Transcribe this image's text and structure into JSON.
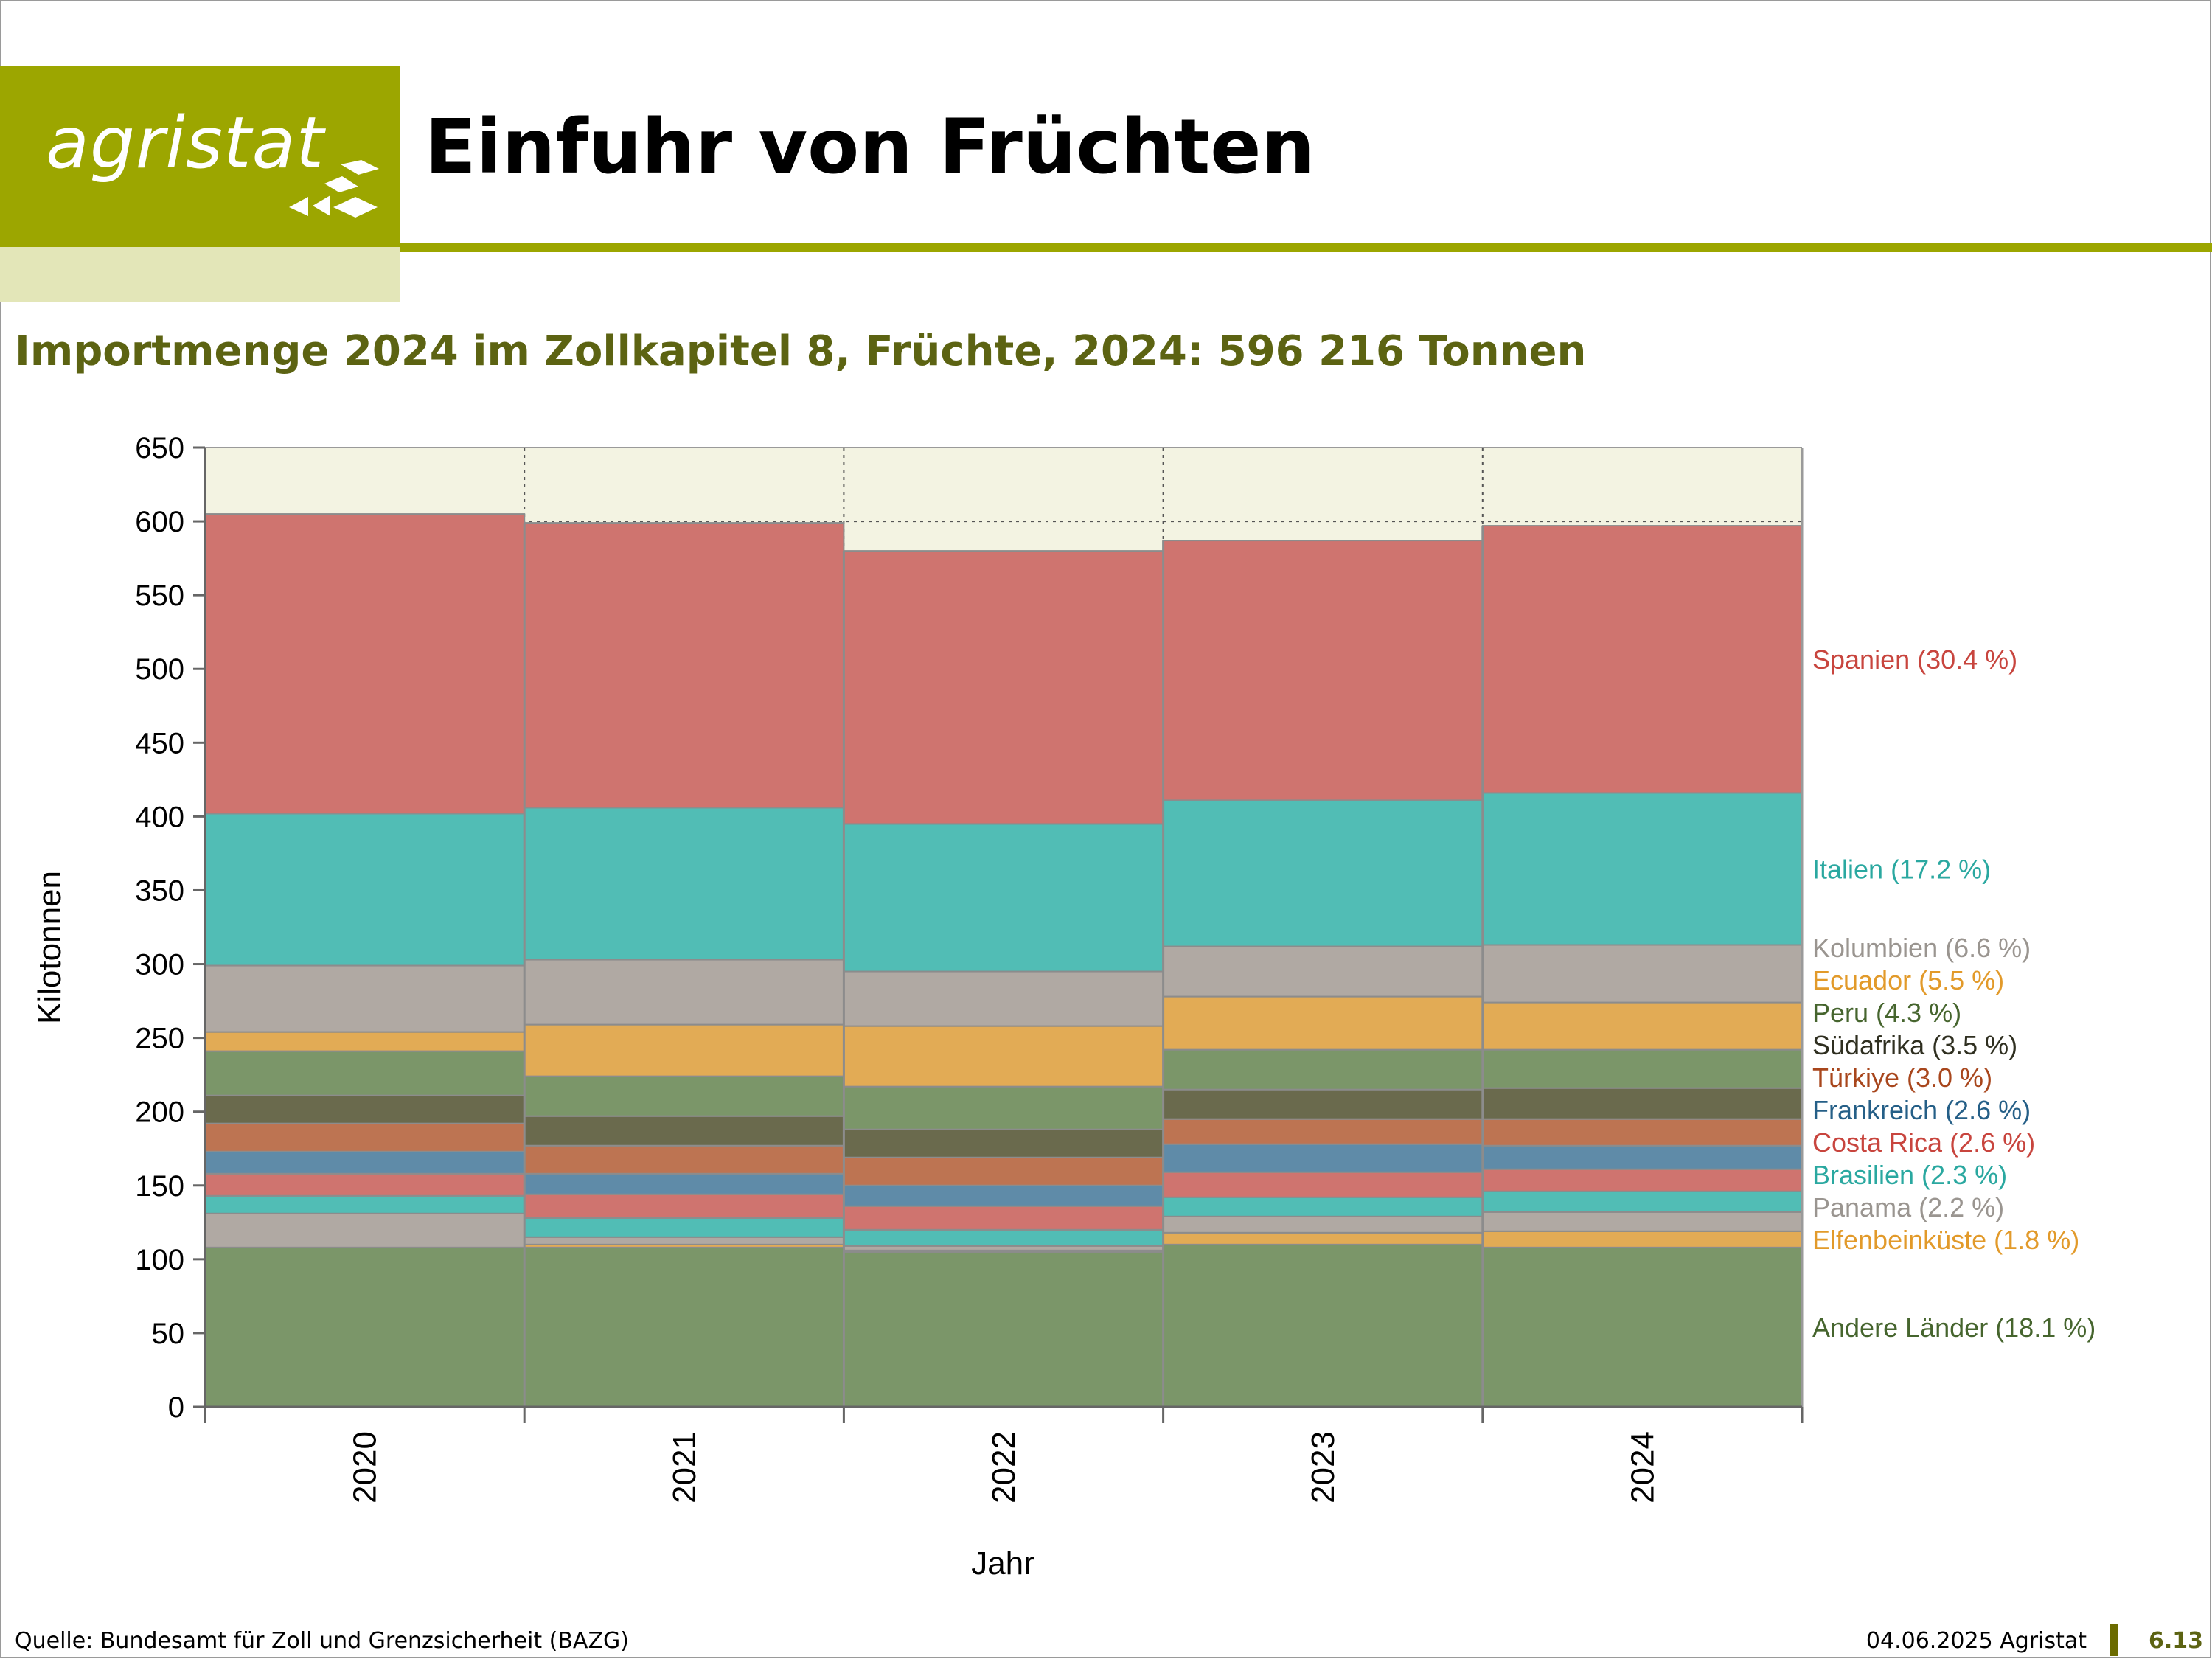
{
  "header": {
    "logo_text": "agristat",
    "title": "Einfuhr von Früchten"
  },
  "subtitle": "Importmenge 2024 im Zollkapitel 8, Früchte, 2024: 596 216 Tonnen",
  "chart_data": {
    "type": "bar",
    "stacked": true,
    "categories": [
      "2020",
      "2021",
      "2022",
      "2023",
      "2024"
    ],
    "xlabel": "Jahr",
    "ylabel": "Kilotonnen",
    "ylim": [
      0,
      650
    ],
    "yticks": [
      0,
      50,
      100,
      150,
      200,
      250,
      300,
      350,
      400,
      450,
      500,
      550,
      600,
      650
    ],
    "grid": true,
    "legend_position": "right",
    "plot_background": "#f3f3e2",
    "series": [
      {
        "name": "Andere Länder (18.1 %)",
        "color": "#7b9669",
        "label_color": "#46652e",
        "values": [
          108,
          108,
          105,
          110,
          108
        ]
      },
      {
        "name": "Elfenbeinküste (1.8 %)",
        "color": "#e2ab55",
        "label_color": "#e29a2a",
        "values": [
          0,
          2,
          1,
          8,
          11
        ]
      },
      {
        "name": "Panama (2.2 %)",
        "color": "#b0a9a3",
        "label_color": "#9a9590",
        "values": [
          23,
          5,
          3,
          11,
          13
        ]
      },
      {
        "name": "Brasilien (2.3 %)",
        "color": "#51bdb5",
        "label_color": "#2aa8a0",
        "values": [
          12,
          13,
          11,
          13,
          14
        ]
      },
      {
        "name": "Costa Rica (2.6 %)",
        "color": "#cf746f",
        "label_color": "#c8453e",
        "values": [
          15,
          16,
          16,
          17,
          15
        ]
      },
      {
        "name": "Frankreich (2.6 %)",
        "color": "#5f8ba8",
        "label_color": "#255f87",
        "values": [
          15,
          14,
          14,
          19,
          16
        ]
      },
      {
        "name": "Türkiye (3.0 %)",
        "color": "#bd7452",
        "label_color": "#a8461c",
        "values": [
          19,
          19,
          19,
          17,
          18
        ]
      },
      {
        "name": "Südafrika (3.5 %)",
        "color": "#6a6a4d",
        "label_color": "#2f2f20",
        "values": [
          19,
          20,
          19,
          20,
          21
        ]
      },
      {
        "name": "Peru (4.3 %)",
        "color": "#7b9669",
        "label_color": "#46652e",
        "values": [
          30,
          27,
          29,
          27,
          26
        ]
      },
      {
        "name": "Ecuador (5.5 %)",
        "color": "#e2ab55",
        "label_color": "#e29a2a",
        "values": [
          13,
          35,
          41,
          36,
          32
        ]
      },
      {
        "name": "Kolumbien (6.6 %)",
        "color": "#b0a9a3",
        "label_color": "#9a9590",
        "values": [
          45,
          44,
          37,
          34,
          39
        ]
      },
      {
        "name": "Italien (17.2 %)",
        "color": "#51bdb5",
        "label_color": "#2aa8a0",
        "values": [
          103,
          103,
          100,
          99,
          103
        ]
      },
      {
        "name": "Spanien (30.4 %)",
        "color": "#cf746f",
        "label_color": "#c8453e",
        "values": [
          203,
          193,
          185,
          176,
          181
        ]
      }
    ]
  },
  "footer": {
    "source": "Quelle: Bundesamt für Zoll und Grenzsicherheit (BAZG)",
    "date": "04.06.2025 Agristat",
    "page": "6.13"
  }
}
